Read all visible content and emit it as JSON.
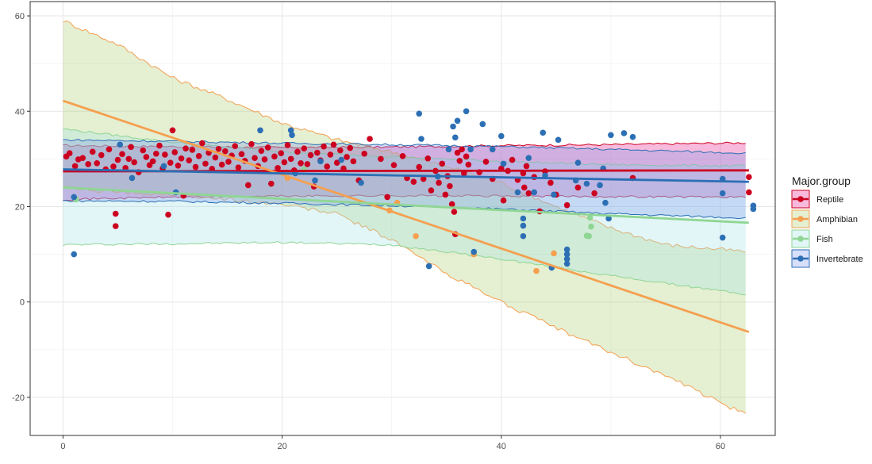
{
  "chart_data": {
    "type": "scatter",
    "title": "",
    "xlabel": "",
    "ylabel": "",
    "xlim": [
      -3,
      65
    ],
    "ylim": [
      -28,
      63
    ],
    "x_ticks": [
      0,
      20,
      40,
      60
    ],
    "y_ticks": [
      -20,
      0,
      20,
      40,
      60
    ],
    "x_tick_labels": [
      "0",
      "20",
      "40",
      "60"
    ],
    "y_tick_labels": [
      "-20",
      "0",
      "20",
      "40",
      "60"
    ],
    "grid": true,
    "legend": {
      "title": "Major.group",
      "placement": "right",
      "entries": [
        "Reptile",
        "Amphibian",
        "Fish",
        "Invertebrate"
      ]
    },
    "series": [
      {
        "name": "Reptile",
        "color": "#cc0020",
        "fill": "#e31a8c",
        "trend": {
          "x": [
            0,
            62.6
          ],
          "y": [
            27.4,
            27.6
          ]
        },
        "band_upper": [
          [
            0,
            32.8
          ],
          [
            10,
            32.6
          ],
          [
            20,
            32.4
          ],
          [
            30,
            32.5
          ],
          [
            40,
            32.8
          ],
          [
            50,
            33.0
          ],
          [
            62.6,
            33.4
          ]
        ],
        "band_lower": [
          [
            0,
            21.5
          ],
          [
            10,
            22.0
          ],
          [
            20,
            22.2
          ],
          [
            30,
            22.3
          ],
          [
            40,
            22.2
          ],
          [
            50,
            22.1
          ],
          [
            62.6,
            22.0
          ]
        ],
        "points": [
          [
            0.3,
            30.5
          ],
          [
            0.6,
            31.2
          ],
          [
            1.1,
            28.5
          ],
          [
            1.4,
            29.9
          ],
          [
            1.8,
            30.2
          ],
          [
            2.3,
            28.9
          ],
          [
            2.7,
            31.5
          ],
          [
            3.1,
            29.1
          ],
          [
            3.5,
            30.8
          ],
          [
            3.9,
            27.8
          ],
          [
            4.2,
            32.0
          ],
          [
            4.6,
            28.4
          ],
          [
            4.8,
            18.5
          ],
          [
            4.8,
            15.9
          ],
          [
            5.0,
            29.8
          ],
          [
            5.4,
            31.0
          ],
          [
            5.7,
            28.1
          ],
          [
            6.0,
            30.0
          ],
          [
            6.2,
            32.5
          ],
          [
            6.5,
            29.3
          ],
          [
            6.9,
            27.2
          ],
          [
            7.3,
            31.8
          ],
          [
            7.6,
            30.4
          ],
          [
            7.9,
            28.7
          ],
          [
            8.2,
            29.5
          ],
          [
            8.5,
            31.1
          ],
          [
            8.8,
            32.8
          ],
          [
            9.1,
            28.0
          ],
          [
            9.3,
            30.9
          ],
          [
            9.6,
            18.3
          ],
          [
            9.8,
            29.2
          ],
          [
            10.0,
            36.0
          ],
          [
            10.2,
            31.4
          ],
          [
            10.5,
            28.6
          ],
          [
            10.8,
            30.1
          ],
          [
            11.0,
            22.3
          ],
          [
            11.2,
            32.2
          ],
          [
            11.5,
            29.7
          ],
          [
            11.8,
            31.9
          ],
          [
            12.1,
            28.3
          ],
          [
            12.4,
            30.6
          ],
          [
            12.7,
            33.3
          ],
          [
            13.0,
            29.0
          ],
          [
            13.3,
            31.3
          ],
          [
            13.6,
            27.9
          ],
          [
            13.9,
            30.3
          ],
          [
            14.2,
            32.1
          ],
          [
            14.5,
            28.8
          ],
          [
            14.8,
            31.6
          ],
          [
            15.1,
            29.4
          ],
          [
            15.4,
            30.7
          ],
          [
            15.7,
            32.7
          ],
          [
            16.0,
            28.2
          ],
          [
            16.3,
            31.0
          ],
          [
            16.6,
            29.6
          ],
          [
            16.9,
            24.5
          ],
          [
            17.2,
            33.1
          ],
          [
            17.5,
            30.2
          ],
          [
            17.8,
            28.5
          ],
          [
            18.1,
            31.7
          ],
          [
            18.4,
            29.9
          ],
          [
            18.7,
            32.4
          ],
          [
            19.0,
            24.8
          ],
          [
            19.3,
            30.5
          ],
          [
            19.6,
            28.1
          ],
          [
            19.9,
            31.2
          ],
          [
            20.2,
            29.3
          ],
          [
            20.5,
            32.9
          ],
          [
            20.8,
            30.0
          ],
          [
            21.1,
            27.6
          ],
          [
            21.4,
            31.5
          ],
          [
            21.7,
            29.1
          ],
          [
            22.0,
            32.2
          ],
          [
            22.3,
            28.9
          ],
          [
            22.6,
            30.8
          ],
          [
            22.9,
            24.2
          ],
          [
            23.2,
            31.3
          ],
          [
            23.5,
            29.7
          ],
          [
            23.8,
            32.6
          ],
          [
            24.1,
            28.4
          ],
          [
            24.4,
            30.9
          ],
          [
            24.7,
            33.0
          ],
          [
            25.0,
            29.2
          ],
          [
            25.3,
            31.8
          ],
          [
            25.6,
            28.0
          ],
          [
            25.9,
            30.4
          ],
          [
            26.2,
            32.3
          ],
          [
            26.5,
            29.5
          ],
          [
            27.0,
            25.5
          ],
          [
            27.5,
            31.1
          ],
          [
            28.0,
            34.2
          ],
          [
            29.0,
            30.0
          ],
          [
            29.6,
            22.0
          ],
          [
            30.2,
            28.7
          ],
          [
            31.0,
            30.6
          ],
          [
            31.4,
            26.0
          ],
          [
            32.0,
            25.2
          ],
          [
            32.5,
            28.3
          ],
          [
            32.9,
            25.8
          ],
          [
            33.3,
            30.1
          ],
          [
            33.6,
            23.4
          ],
          [
            34.0,
            27.5
          ],
          [
            34.3,
            25.0
          ],
          [
            34.6,
            29.0
          ],
          [
            34.9,
            22.5
          ],
          [
            35.1,
            26.4
          ],
          [
            35.3,
            24.3
          ],
          [
            35.5,
            20.5
          ],
          [
            35.7,
            18.9
          ],
          [
            35.8,
            14.2
          ],
          [
            36.0,
            31.3
          ],
          [
            36.2,
            29.6
          ],
          [
            36.4,
            32.0
          ],
          [
            36.6,
            27.0
          ],
          [
            36.8,
            30.5
          ],
          [
            37.0,
            28.8
          ],
          [
            38.0,
            27.2
          ],
          [
            38.6,
            29.4
          ],
          [
            39.2,
            25.8
          ],
          [
            40.0,
            28.0
          ],
          [
            40.2,
            21.3
          ],
          [
            40.6,
            27.5
          ],
          [
            41.0,
            29.8
          ],
          [
            41.5,
            25.6
          ],
          [
            42.0,
            27.0
          ],
          [
            42.1,
            24.0
          ],
          [
            42.3,
            28.5
          ],
          [
            42.5,
            22.8
          ],
          [
            43.0,
            26.2
          ],
          [
            43.5,
            19.0
          ],
          [
            44.0,
            27.4
          ],
          [
            44.5,
            25.0
          ],
          [
            45.0,
            22.5
          ],
          [
            46.0,
            20.3
          ],
          [
            47.0,
            24.0
          ],
          [
            48.5,
            22.8
          ],
          [
            52.0,
            26.0
          ],
          [
            62.6,
            26.2
          ],
          [
            62.6,
            23.0
          ]
        ]
      },
      {
        "name": "Amphibian",
        "color": "#f4a050",
        "fill": "#a8c96a",
        "trend": {
          "x": [
            0,
            62.6
          ],
          "y": [
            42.2,
            -6.3
          ]
        },
        "band_upper": [
          [
            0,
            59.0
          ],
          [
            5,
            54.0
          ],
          [
            10,
            47.0
          ],
          [
            15,
            42.5
          ],
          [
            20,
            37.5
          ],
          [
            25,
            34.0
          ],
          [
            30,
            31.5
          ],
          [
            35,
            28.5
          ],
          [
            40,
            25.0
          ],
          [
            45,
            20.0
          ],
          [
            50,
            15.5
          ],
          [
            55,
            12.0
          ],
          [
            62.6,
            10.5
          ]
        ],
        "band_lower": [
          [
            0,
            24.0
          ],
          [
            5,
            23.0
          ],
          [
            10,
            22.5
          ],
          [
            15,
            21.5
          ],
          [
            20,
            20.5
          ],
          [
            25,
            18.5
          ],
          [
            30,
            13.0
          ],
          [
            35,
            6.0
          ],
          [
            40,
            0.0
          ],
          [
            45,
            -5.5
          ],
          [
            50,
            -10.5
          ],
          [
            55,
            -15.5
          ],
          [
            62.6,
            -24.0
          ]
        ],
        "points": [
          [
            20.5,
            26.0
          ],
          [
            29.8,
            19.2
          ],
          [
            30.5,
            20.8
          ],
          [
            32.2,
            13.8
          ],
          [
            37.5,
            10.0
          ],
          [
            43.2,
            6.5
          ],
          [
            44.8,
            10.2
          ]
        ]
      },
      {
        "name": "Fish",
        "color": "#8fd694",
        "fill": "#9fe0e6",
        "trend": {
          "x": [
            0,
            62.6
          ],
          "y": [
            24.0,
            16.6
          ]
        },
        "band_upper": [
          [
            0,
            36.3
          ],
          [
            10,
            33.5
          ],
          [
            20,
            31.5
          ],
          [
            30,
            30.5
          ],
          [
            40,
            29.5
          ],
          [
            50,
            28.8
          ],
          [
            62.6,
            28.5
          ]
        ],
        "band_lower": [
          [
            0,
            12.0
          ],
          [
            10,
            12.2
          ],
          [
            20,
            12.5
          ],
          [
            30,
            12.0
          ],
          [
            40,
            9.0
          ],
          [
            50,
            5.5
          ],
          [
            62.6,
            1.5
          ]
        ],
        "points": [
          [
            1.2,
            21.5
          ],
          [
            22.0,
            27.8
          ],
          [
            47.8,
            13.9
          ],
          [
            48.1,
            17.7
          ],
          [
            48.2,
            15.8
          ],
          [
            48.0,
            13.8
          ]
        ]
      },
      {
        "name": "Invertebrate",
        "color": "#2c6fb4",
        "fill": "#7a95f0",
        "trend": {
          "x": [
            0,
            62.6
          ],
          "y": [
            27.8,
            25.2
          ]
        },
        "band_upper": [
          [
            0,
            34.0
          ],
          [
            10,
            33.7
          ],
          [
            20,
            33.3
          ],
          [
            30,
            33.0
          ],
          [
            40,
            32.6
          ],
          [
            50,
            32.0
          ],
          [
            62.6,
            31.2
          ]
        ],
        "band_lower": [
          [
            0,
            21.2
          ],
          [
            10,
            21.1
          ],
          [
            20,
            20.7
          ],
          [
            30,
            20.2
          ],
          [
            40,
            19.5
          ],
          [
            50,
            18.5
          ],
          [
            62.6,
            17.6
          ]
        ],
        "points": [
          [
            1.0,
            10.0
          ],
          [
            1.0,
            22.0
          ],
          [
            5.2,
            33.0
          ],
          [
            6.3,
            26.0
          ],
          [
            9.2,
            28.5
          ],
          [
            10.3,
            23.0
          ],
          [
            18.0,
            36.0
          ],
          [
            20.8,
            36.0
          ],
          [
            20.9,
            35.0
          ],
          [
            21.2,
            27.0
          ],
          [
            23.0,
            25.5
          ],
          [
            23.5,
            29.5
          ],
          [
            25.4,
            29.8
          ],
          [
            27.2,
            25.0
          ],
          [
            32.5,
            39.5
          ],
          [
            32.7,
            34.2
          ],
          [
            33.4,
            7.5
          ],
          [
            34.2,
            26.3
          ],
          [
            35.2,
            32.0
          ],
          [
            35.6,
            36.8
          ],
          [
            35.8,
            34.5
          ],
          [
            36.0,
            38.0
          ],
          [
            36.8,
            40.0
          ],
          [
            37.2,
            32.0
          ],
          [
            37.5,
            10.5
          ],
          [
            38.3,
            37.3
          ],
          [
            39.2,
            32.0
          ],
          [
            40.0,
            34.8
          ],
          [
            40.2,
            29.0
          ],
          [
            41.5,
            23.0
          ],
          [
            42.0,
            17.5
          ],
          [
            42.0,
            16.0
          ],
          [
            42.0,
            13.8
          ],
          [
            42.5,
            30.2
          ],
          [
            43.0,
            23.0
          ],
          [
            43.8,
            35.5
          ],
          [
            44.0,
            26.5
          ],
          [
            44.6,
            7.2
          ],
          [
            44.8,
            22.5
          ],
          [
            45.2,
            34.0
          ],
          [
            46.0,
            11.0
          ],
          [
            46.0,
            10.0
          ],
          [
            46.0,
            9.0
          ],
          [
            46.0,
            8.0
          ],
          [
            46.8,
            25.5
          ],
          [
            47.0,
            29.2
          ],
          [
            47.8,
            24.8
          ],
          [
            49.0,
            24.5
          ],
          [
            49.3,
            28.0
          ],
          [
            49.5,
            20.8
          ],
          [
            49.8,
            17.5
          ],
          [
            50.0,
            35.0
          ],
          [
            51.2,
            35.4
          ],
          [
            52.0,
            34.6
          ],
          [
            60.2,
            25.8
          ],
          [
            60.2,
            22.8
          ],
          [
            60.2,
            13.5
          ],
          [
            63.0,
            20.2
          ],
          [
            63.0,
            19.5
          ]
        ]
      }
    ]
  }
}
